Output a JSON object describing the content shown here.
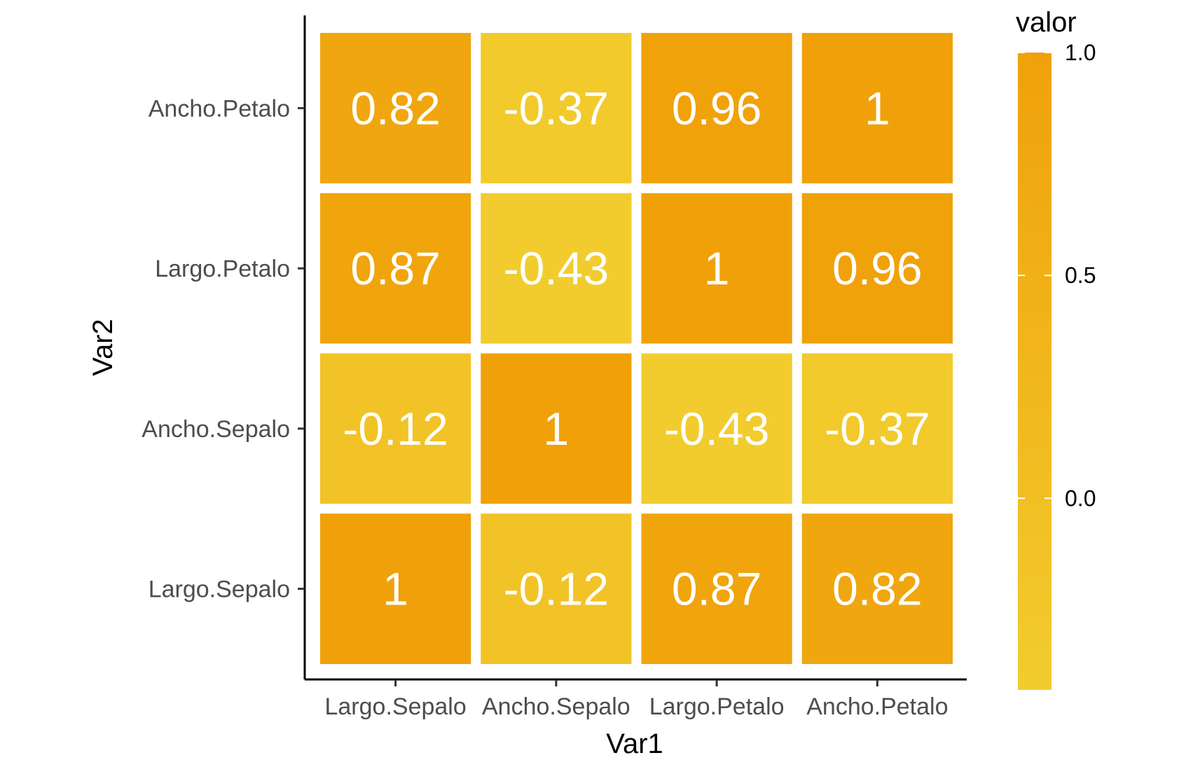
{
  "chart_data": {
    "type": "heatmap",
    "title": "",
    "xlabel": "Var1",
    "ylabel": "Var2",
    "x_categories": [
      "Largo.Sepalo",
      "Ancho.Sepalo",
      "Largo.Petalo",
      "Ancho.Petalo"
    ],
    "y_categories": [
      "Largo.Sepalo",
      "Ancho.Sepalo",
      "Largo.Petalo",
      "Ancho.Petalo"
    ],
    "cells": [
      {
        "x": "Largo.Sepalo",
        "y": "Largo.Sepalo",
        "value": 1,
        "label": "1"
      },
      {
        "x": "Ancho.Sepalo",
        "y": "Largo.Sepalo",
        "value": -0.12,
        "label": "-0.12"
      },
      {
        "x": "Largo.Petalo",
        "y": "Largo.Sepalo",
        "value": 0.87,
        "label": "0.87"
      },
      {
        "x": "Ancho.Petalo",
        "y": "Largo.Sepalo",
        "value": 0.82,
        "label": "0.82"
      },
      {
        "x": "Largo.Sepalo",
        "y": "Ancho.Sepalo",
        "value": -0.12,
        "label": "-0.12"
      },
      {
        "x": "Ancho.Sepalo",
        "y": "Ancho.Sepalo",
        "value": 1,
        "label": "1"
      },
      {
        "x": "Largo.Petalo",
        "y": "Ancho.Sepalo",
        "value": -0.43,
        "label": "-0.43"
      },
      {
        "x": "Ancho.Petalo",
        "y": "Ancho.Sepalo",
        "value": -0.37,
        "label": "-0.37"
      },
      {
        "x": "Largo.Sepalo",
        "y": "Largo.Petalo",
        "value": 0.87,
        "label": "0.87"
      },
      {
        "x": "Ancho.Sepalo",
        "y": "Largo.Petalo",
        "value": -0.43,
        "label": "-0.43"
      },
      {
        "x": "Largo.Petalo",
        "y": "Largo.Petalo",
        "value": 1,
        "label": "1"
      },
      {
        "x": "Ancho.Petalo",
        "y": "Largo.Petalo",
        "value": 0.96,
        "label": "0.96"
      },
      {
        "x": "Largo.Sepalo",
        "y": "Ancho.Petalo",
        "value": 0.82,
        "label": "0.82"
      },
      {
        "x": "Ancho.Sepalo",
        "y": "Ancho.Petalo",
        "value": -0.37,
        "label": "-0.37"
      },
      {
        "x": "Largo.Petalo",
        "y": "Ancho.Petalo",
        "value": 0.96,
        "label": "0.96"
      },
      {
        "x": "Ancho.Petalo",
        "y": "Ancho.Petalo",
        "value": 1,
        "label": "1"
      }
    ],
    "legend": {
      "title": "valor",
      "placement": "right",
      "ticks": [
        {
          "value": 1.0,
          "label": "1.0"
        },
        {
          "value": 0.5,
          "label": "0.5"
        },
        {
          "value": 0.0,
          "label": "0.0"
        }
      ],
      "value_range": [
        -0.43,
        1.0
      ],
      "color_low": "#F2CC2E",
      "color_high": "#F0A10A"
    },
    "grid": false
  }
}
